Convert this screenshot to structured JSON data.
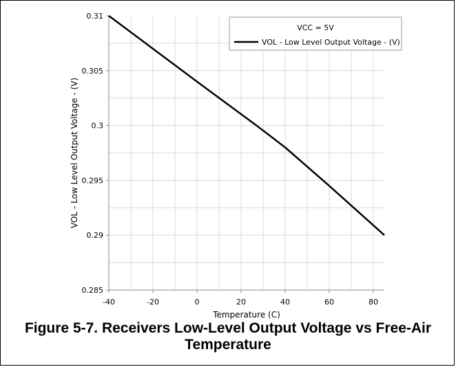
{
  "chart_data": {
    "type": "line",
    "caption": "Figure 5-7. Receivers Low-Level Output Voltage vs Free-Air Temperature",
    "xlabel": "Temperature (C)",
    "ylabel": "VOL - Low Level Output Voltage - (V)",
    "xlim": [
      -40,
      85
    ],
    "ylim": [
      0.285,
      0.31
    ],
    "x_ticks": [
      -40,
      -20,
      0,
      20,
      40,
      60,
      80
    ],
    "y_ticks": [
      0.285,
      0.29,
      0.295,
      0.3,
      0.305,
      0.31
    ],
    "y_tick_labels": [
      "0.285",
      "0.29",
      "0.295",
      "0.3",
      "0.305",
      "0.31"
    ],
    "grid": true,
    "legend_position": "top-right",
    "legend_title": "VCC = 5V",
    "series": [
      {
        "name": "VOL - Low Level Output Voltage - (V)",
        "color": "#000000",
        "x": [
          -40,
          -20,
          0,
          27,
          40,
          60,
          85
        ],
        "y": [
          0.31,
          0.307,
          0.304,
          0.3,
          0.298,
          0.2945,
          0.29
        ]
      }
    ]
  }
}
